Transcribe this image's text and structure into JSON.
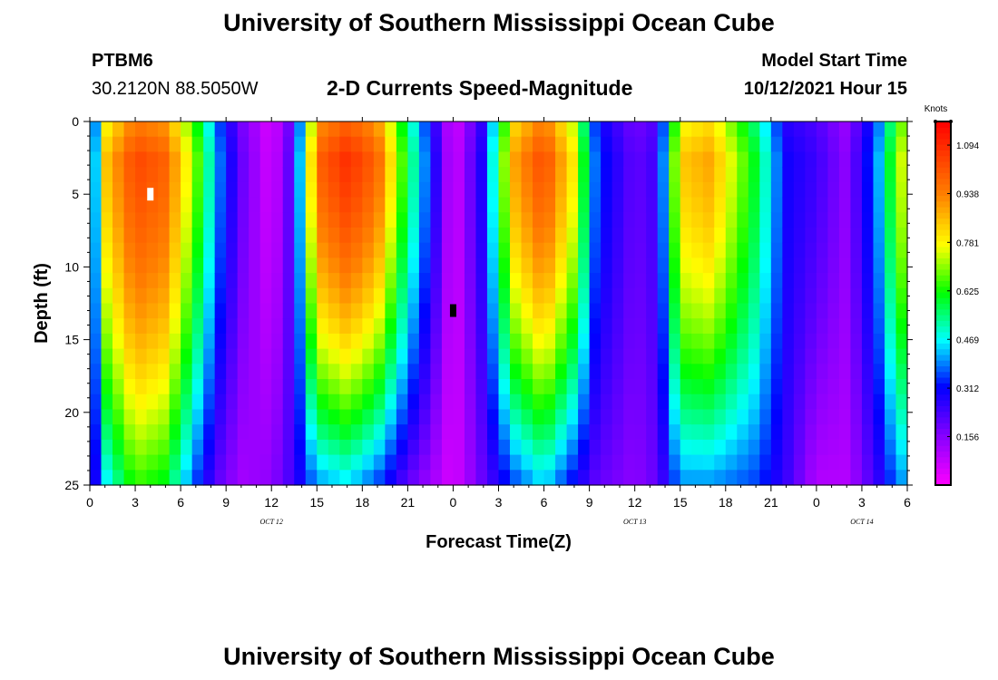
{
  "page": {
    "top_title": "University of Southern Mississippi Ocean Cube",
    "bottom_title": "University of Southern Mississippi Ocean Cube",
    "station_id": "PTBM6",
    "station_coords": "30.2120N  88.5050W",
    "model_start_label": "Model Start Time",
    "model_start_value": "10/12/2021 Hour 15"
  },
  "chart_data": {
    "type": "heatmap",
    "title": "2-D Currents Speed-Magnitude",
    "xlabel": "Forecast Time(Z)",
    "ylabel": "Depth (ft)",
    "xlim": [
      0,
      54
    ],
    "ylim": [
      0,
      25
    ],
    "y_inverted": true,
    "x_tick_values": [
      0,
      3,
      6,
      9,
      12,
      15,
      18,
      21,
      24,
      27,
      30,
      33,
      36,
      39,
      42,
      45,
      48,
      51,
      54
    ],
    "x_tick_labels": [
      "0",
      "3",
      "6",
      "9",
      "12",
      "15",
      "18",
      "21",
      "0",
      "3",
      "6",
      "9",
      "12",
      "15",
      "18",
      "21",
      "0",
      "3",
      "6"
    ],
    "y_tick_values": [
      0,
      5,
      10,
      15,
      20,
      25
    ],
    "y_tick_labels": [
      "0",
      "5",
      "10",
      "15",
      "20",
      "25"
    ],
    "date_labels": [
      {
        "x": 12,
        "label": "OCT  12"
      },
      {
        "x": 36,
        "label": "OCT  13"
      },
      {
        "x": 51,
        "label": "OCT  14"
      }
    ],
    "colorbar": {
      "unit": "Knots",
      "min": 0,
      "max": 1.17,
      "tick_values": [
        0.156,
        0.312,
        0.469,
        0.625,
        0.781,
        0.938,
        1.094
      ],
      "tick_labels": [
        "0.156",
        "0.312",
        "0.469",
        "0.625",
        "0.781",
        "0.938",
        "1.094"
      ]
    },
    "speed_profile_keyframes": [
      {
        "t": 0,
        "surface": 0.2,
        "bottom": 0.2
      },
      {
        "t": 1,
        "surface": 0.85,
        "bottom": 0.45
      },
      {
        "t": 3,
        "surface": 1.05,
        "bottom": 0.65
      },
      {
        "t": 5,
        "surface": 1.0,
        "bottom": 0.6
      },
      {
        "t": 7,
        "surface": 0.7,
        "bottom": 0.35
      },
      {
        "t": 8.5,
        "surface": 0.4,
        "bottom": 0.2
      },
      {
        "t": 10,
        "surface": 0.2,
        "bottom": 0.12
      },
      {
        "t": 12,
        "surface": 0.05,
        "bottom": 0.15
      },
      {
        "t": 13.5,
        "surface": 0.25,
        "bottom": 0.25
      },
      {
        "t": 15,
        "surface": 1.0,
        "bottom": 0.4
      },
      {
        "t": 17,
        "surface": 1.1,
        "bottom": 0.45
      },
      {
        "t": 19,
        "surface": 1.0,
        "bottom": 0.35
      },
      {
        "t": 21,
        "surface": 0.6,
        "bottom": 0.2
      },
      {
        "t": 23,
        "surface": 0.25,
        "bottom": 0.1
      },
      {
        "t": 24,
        "surface": 0.05,
        "bottom": 0.05
      },
      {
        "t": 26,
        "surface": 0.3,
        "bottom": 0.2
      },
      {
        "t": 28,
        "surface": 0.9,
        "bottom": 0.35
      },
      {
        "t": 30,
        "surface": 1.05,
        "bottom": 0.45
      },
      {
        "t": 32,
        "surface": 0.8,
        "bottom": 0.3
      },
      {
        "t": 33.5,
        "surface": 0.35,
        "bottom": 0.2
      },
      {
        "t": 36,
        "surface": 0.2,
        "bottom": 0.15
      },
      {
        "t": 37.5,
        "surface": 0.25,
        "bottom": 0.2
      },
      {
        "t": 39,
        "surface": 0.85,
        "bottom": 0.4
      },
      {
        "t": 41,
        "surface": 0.9,
        "bottom": 0.4
      },
      {
        "t": 44,
        "surface": 0.6,
        "bottom": 0.35
      },
      {
        "t": 46,
        "surface": 0.3,
        "bottom": 0.25
      },
      {
        "t": 48,
        "surface": 0.25,
        "bottom": 0.1
      },
      {
        "t": 50,
        "surface": 0.15,
        "bottom": 0.1
      },
      {
        "t": 52,
        "surface": 0.4,
        "bottom": 0.25
      },
      {
        "t": 53.5,
        "surface": 0.75,
        "bottom": 0.4
      },
      {
        "t": 54,
        "surface": 0.75,
        "bottom": 0.4
      }
    ],
    "markers": [
      {
        "x": 4,
        "y": 5,
        "color": "#ffffff"
      },
      {
        "x": 24,
        "y": 13,
        "color": "#000000"
      }
    ]
  }
}
